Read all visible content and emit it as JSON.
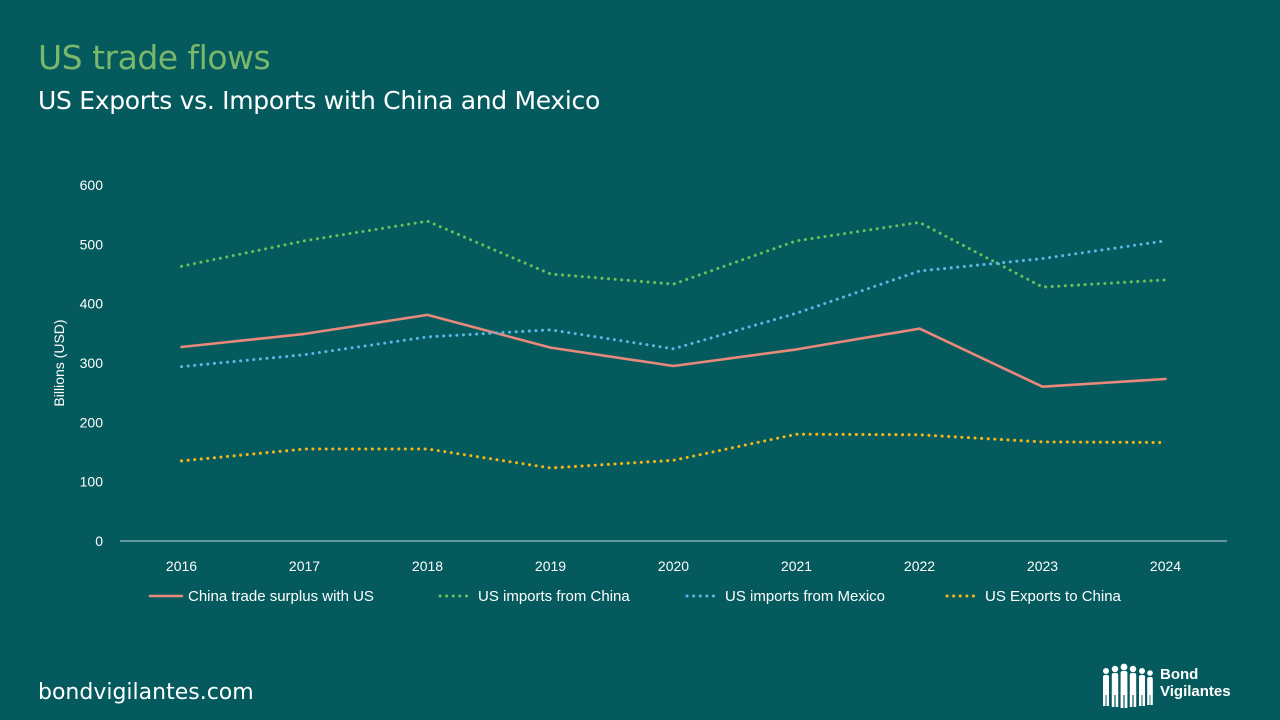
{
  "header": {
    "title": "US trade flows",
    "subtitle": "US Exports vs. Imports with China and Mexico"
  },
  "footer": {
    "site": "bondvigilantes.com",
    "logo_line1": "Bond",
    "logo_line2": "Vigilantes"
  },
  "colors": {
    "background": "#055a5e",
    "title": "#79b86a",
    "surplus": "#e8897a",
    "china_imports": "#6bbf59",
    "mexico_imports": "#5bb8e6",
    "exports": "#f5b716"
  },
  "chart_data": {
    "type": "line",
    "title": "",
    "xlabel": "",
    "ylabel": "Billions (USD)",
    "ylim": [
      0,
      600
    ],
    "yticks": [
      "0",
      "100",
      "200",
      "300",
      "400",
      "500",
      "600"
    ],
    "grid": false,
    "legend_position": "bottom",
    "categories": [
      "2016",
      "2017",
      "2018",
      "2019",
      "2020",
      "2021",
      "2022",
      "2023",
      "2024"
    ],
    "series": [
      {
        "name": "China trade surplus with US",
        "style": "solid",
        "color": "#e8897a",
        "values": [
          327,
          349,
          381,
          326,
          295,
          323,
          358,
          260,
          273
        ]
      },
      {
        "name": "US imports from China",
        "style": "dotted",
        "color": "#6bbf59",
        "values": [
          463,
          506,
          539,
          450,
          433,
          506,
          537,
          428,
          440
        ]
      },
      {
        "name": "US imports from Mexico",
        "style": "dotted",
        "color": "#5bb8e6",
        "values": [
          294,
          314,
          344,
          356,
          324,
          384,
          455,
          476,
          506
        ]
      },
      {
        "name": "US Exports to China",
        "style": "dotted",
        "color": "#f5b716",
        "values": [
          135,
          155,
          155,
          123,
          136,
          180,
          179,
          167,
          166
        ]
      }
    ]
  }
}
